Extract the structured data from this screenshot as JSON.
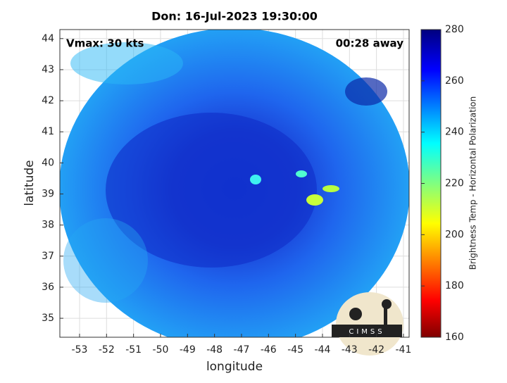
{
  "chart_data": {
    "type": "image",
    "title": "Don: 16-Jul-2023 19:30:00",
    "annotations": [
      "Vmax: 30 kts",
      "00:28 away"
    ],
    "xlabel": "longitude",
    "ylabel": "latitude",
    "xlim": [
      -53.73,
      -40.79
    ],
    "xticks": [
      -53,
      -52,
      -51,
      -50,
      -49,
      -48,
      -47,
      -46,
      -45,
      -44,
      -43,
      -42,
      -41
    ],
    "ylim": [
      34.39,
      44.29
    ],
    "yticks": [
      35,
      36,
      37,
      38,
      39,
      40,
      41,
      42,
      43,
      44
    ],
    "grid": true,
    "colorbar": {
      "label": "Brightness Temp - Horizontal Polarization",
      "colormap": "jet",
      "lim": [
        160,
        280
      ],
      "ticks": [
        160,
        180,
        200,
        220,
        240,
        260,
        280
      ]
    },
    "logo_text": "CIMSS"
  }
}
